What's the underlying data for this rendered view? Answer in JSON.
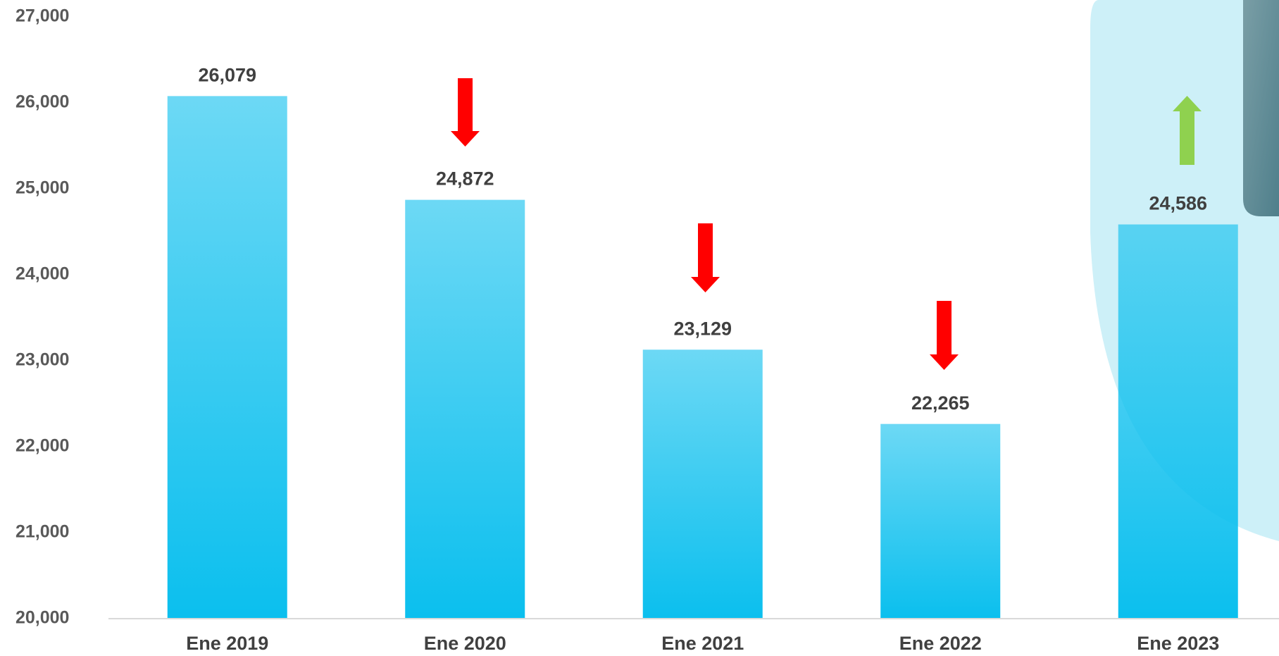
{
  "chart_data": {
    "type": "bar",
    "categories": [
      "Ene 2019",
      "Ene 2020",
      "Ene 2021",
      "Ene 2022",
      "Ene 2023"
    ],
    "values": [
      26079,
      24872,
      23129,
      22265,
      24586
    ],
    "value_labels": [
      "26,079",
      "24,872",
      "23,129",
      "22,265",
      "24,586"
    ],
    "color": "#0bbfee",
    "ylim": [
      20000,
      27000
    ],
    "yticks": [
      {
        "value": 20000,
        "label": "20,000"
      },
      {
        "value": 21000,
        "label": "21,000"
      },
      {
        "value": 22000,
        "label": "22,000"
      },
      {
        "value": 23000,
        "label": "23,000"
      },
      {
        "value": 24000,
        "label": "24,000"
      },
      {
        "value": 25000,
        "label": "25,000"
      },
      {
        "value": 26000,
        "label": "26,000"
      },
      {
        "value": 27000,
        "label": "27,000"
      }
    ],
    "grid": false
  }
}
